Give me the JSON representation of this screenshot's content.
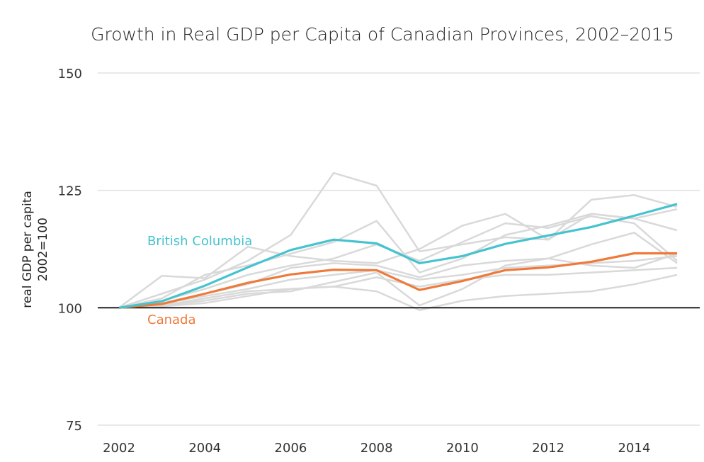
{
  "chart_data": {
    "type": "line",
    "title": "Growth in Real GDP per Capita of Canadian Provinces, 2002–2015",
    "xlabel": "",
    "ylabel": [
      "real GDP per capita",
      "2002=100"
    ],
    "xlim": [
      2002,
      2015
    ],
    "ylim": [
      75,
      150
    ],
    "x_ticks": [
      "2002",
      "2004",
      "2006",
      "2008",
      "2010",
      "2012",
      "2014"
    ],
    "y_ticks": [
      "75",
      "100",
      "125",
      "150"
    ],
    "grid": true,
    "x": [
      2002,
      2003,
      2004,
      2005,
      2006,
      2007,
      2008,
      2009,
      2010,
      2011,
      2012,
      2013,
      2014,
      2015
    ],
    "series": [
      {
        "name": "British Columbia",
        "color": "#45c3cf",
        "values": [
          100,
          101.4,
          104.7,
          108.6,
          112.3,
          114.5,
          113.7,
          109.5,
          111,
          113.6,
          115.4,
          117.2,
          119.6,
          122.1
        ]
      },
      {
        "name": "Canada",
        "color": "#ee7a3a",
        "values": [
          100,
          100.8,
          103,
          105.3,
          107.1,
          108.1,
          108,
          103.8,
          105.7,
          108,
          108.6,
          109.8,
          111.6,
          111.6
        ]
      }
    ],
    "other_series_color": "#d9d9d9",
    "other_series": [
      [
        100,
        103,
        106,
        110,
        115.5,
        128.7,
        126,
        112,
        113.5,
        115,
        114.5,
        120,
        119,
        121
      ],
      [
        100,
        106.8,
        106.3,
        113,
        111,
        110,
        109.5,
        112.5,
        117.5,
        120,
        114.5,
        123,
        124,
        121.5
      ],
      [
        100,
        102,
        107,
        109,
        111.5,
        114,
        118.5,
        107.5,
        110.5,
        115.5,
        117.5,
        120,
        119,
        116.5
      ],
      [
        100,
        101.5,
        104,
        107,
        109,
        110.5,
        113.5,
        110,
        114,
        118,
        117,
        119.5,
        118,
        110
      ],
      [
        100,
        101,
        103,
        105,
        108.5,
        109.5,
        109,
        106.5,
        109,
        110,
        110.5,
        113.5,
        116,
        109.5
      ],
      [
        100,
        101,
        102.5,
        104,
        106,
        107,
        108,
        106,
        107,
        108.5,
        109,
        109.5,
        110,
        111
      ],
      [
        100,
        100.5,
        102,
        103.5,
        104,
        104.5,
        106.5,
        104.5,
        106,
        107,
        107,
        107.5,
        108,
        108.5
      ],
      [
        100,
        100.5,
        101.5,
        103,
        103.5,
        105.5,
        107.5,
        100.5,
        104,
        109,
        110.5,
        109,
        108.5,
        111.5
      ],
      [
        100,
        100.3,
        101,
        102.5,
        104,
        104.5,
        103.5,
        99.5,
        101.5,
        102.5,
        103,
        103.5,
        105,
        107
      ]
    ],
    "annotations": [
      {
        "text": "British Columbia",
        "series": "British Columbia"
      },
      {
        "text": "Canada",
        "series": "Canada"
      }
    ]
  }
}
